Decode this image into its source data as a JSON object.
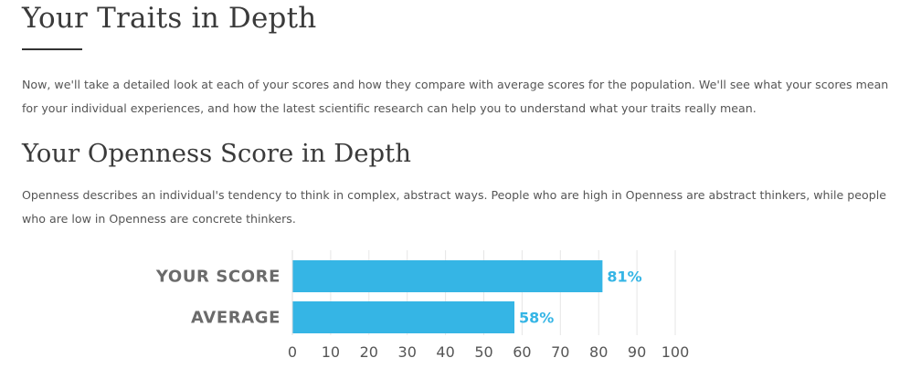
{
  "section": {
    "title": "Your Traits in Depth",
    "intro": "Now, we'll take a detailed look at each of your scores and how they compare with average scores for the population. We'll see what your scores mean for your individual experiences, and how the latest scientific research can help you to understand what your traits really mean."
  },
  "trait": {
    "title": "Your Openness Score in Depth",
    "description": "Openness describes an individual's tendency to think in complex, abstract ways. People who are high in Openness are abstract thinkers, while people who are low in Openness are concrete thinkers."
  },
  "colors": {
    "bar": "#35b5e5",
    "value_label": "#35b5e5",
    "gridline": "#e6e6e6"
  },
  "chart_data": {
    "type": "bar",
    "orientation": "horizontal",
    "categories": [
      "YOUR SCORE",
      "AVERAGE"
    ],
    "values": [
      81,
      58
    ],
    "value_labels": [
      "81%",
      "58%"
    ],
    "xlim": [
      0,
      100
    ],
    "xticks": [
      0,
      10,
      20,
      30,
      40,
      50,
      60,
      70,
      80,
      90,
      100
    ],
    "grid": true,
    "legend": "none"
  }
}
